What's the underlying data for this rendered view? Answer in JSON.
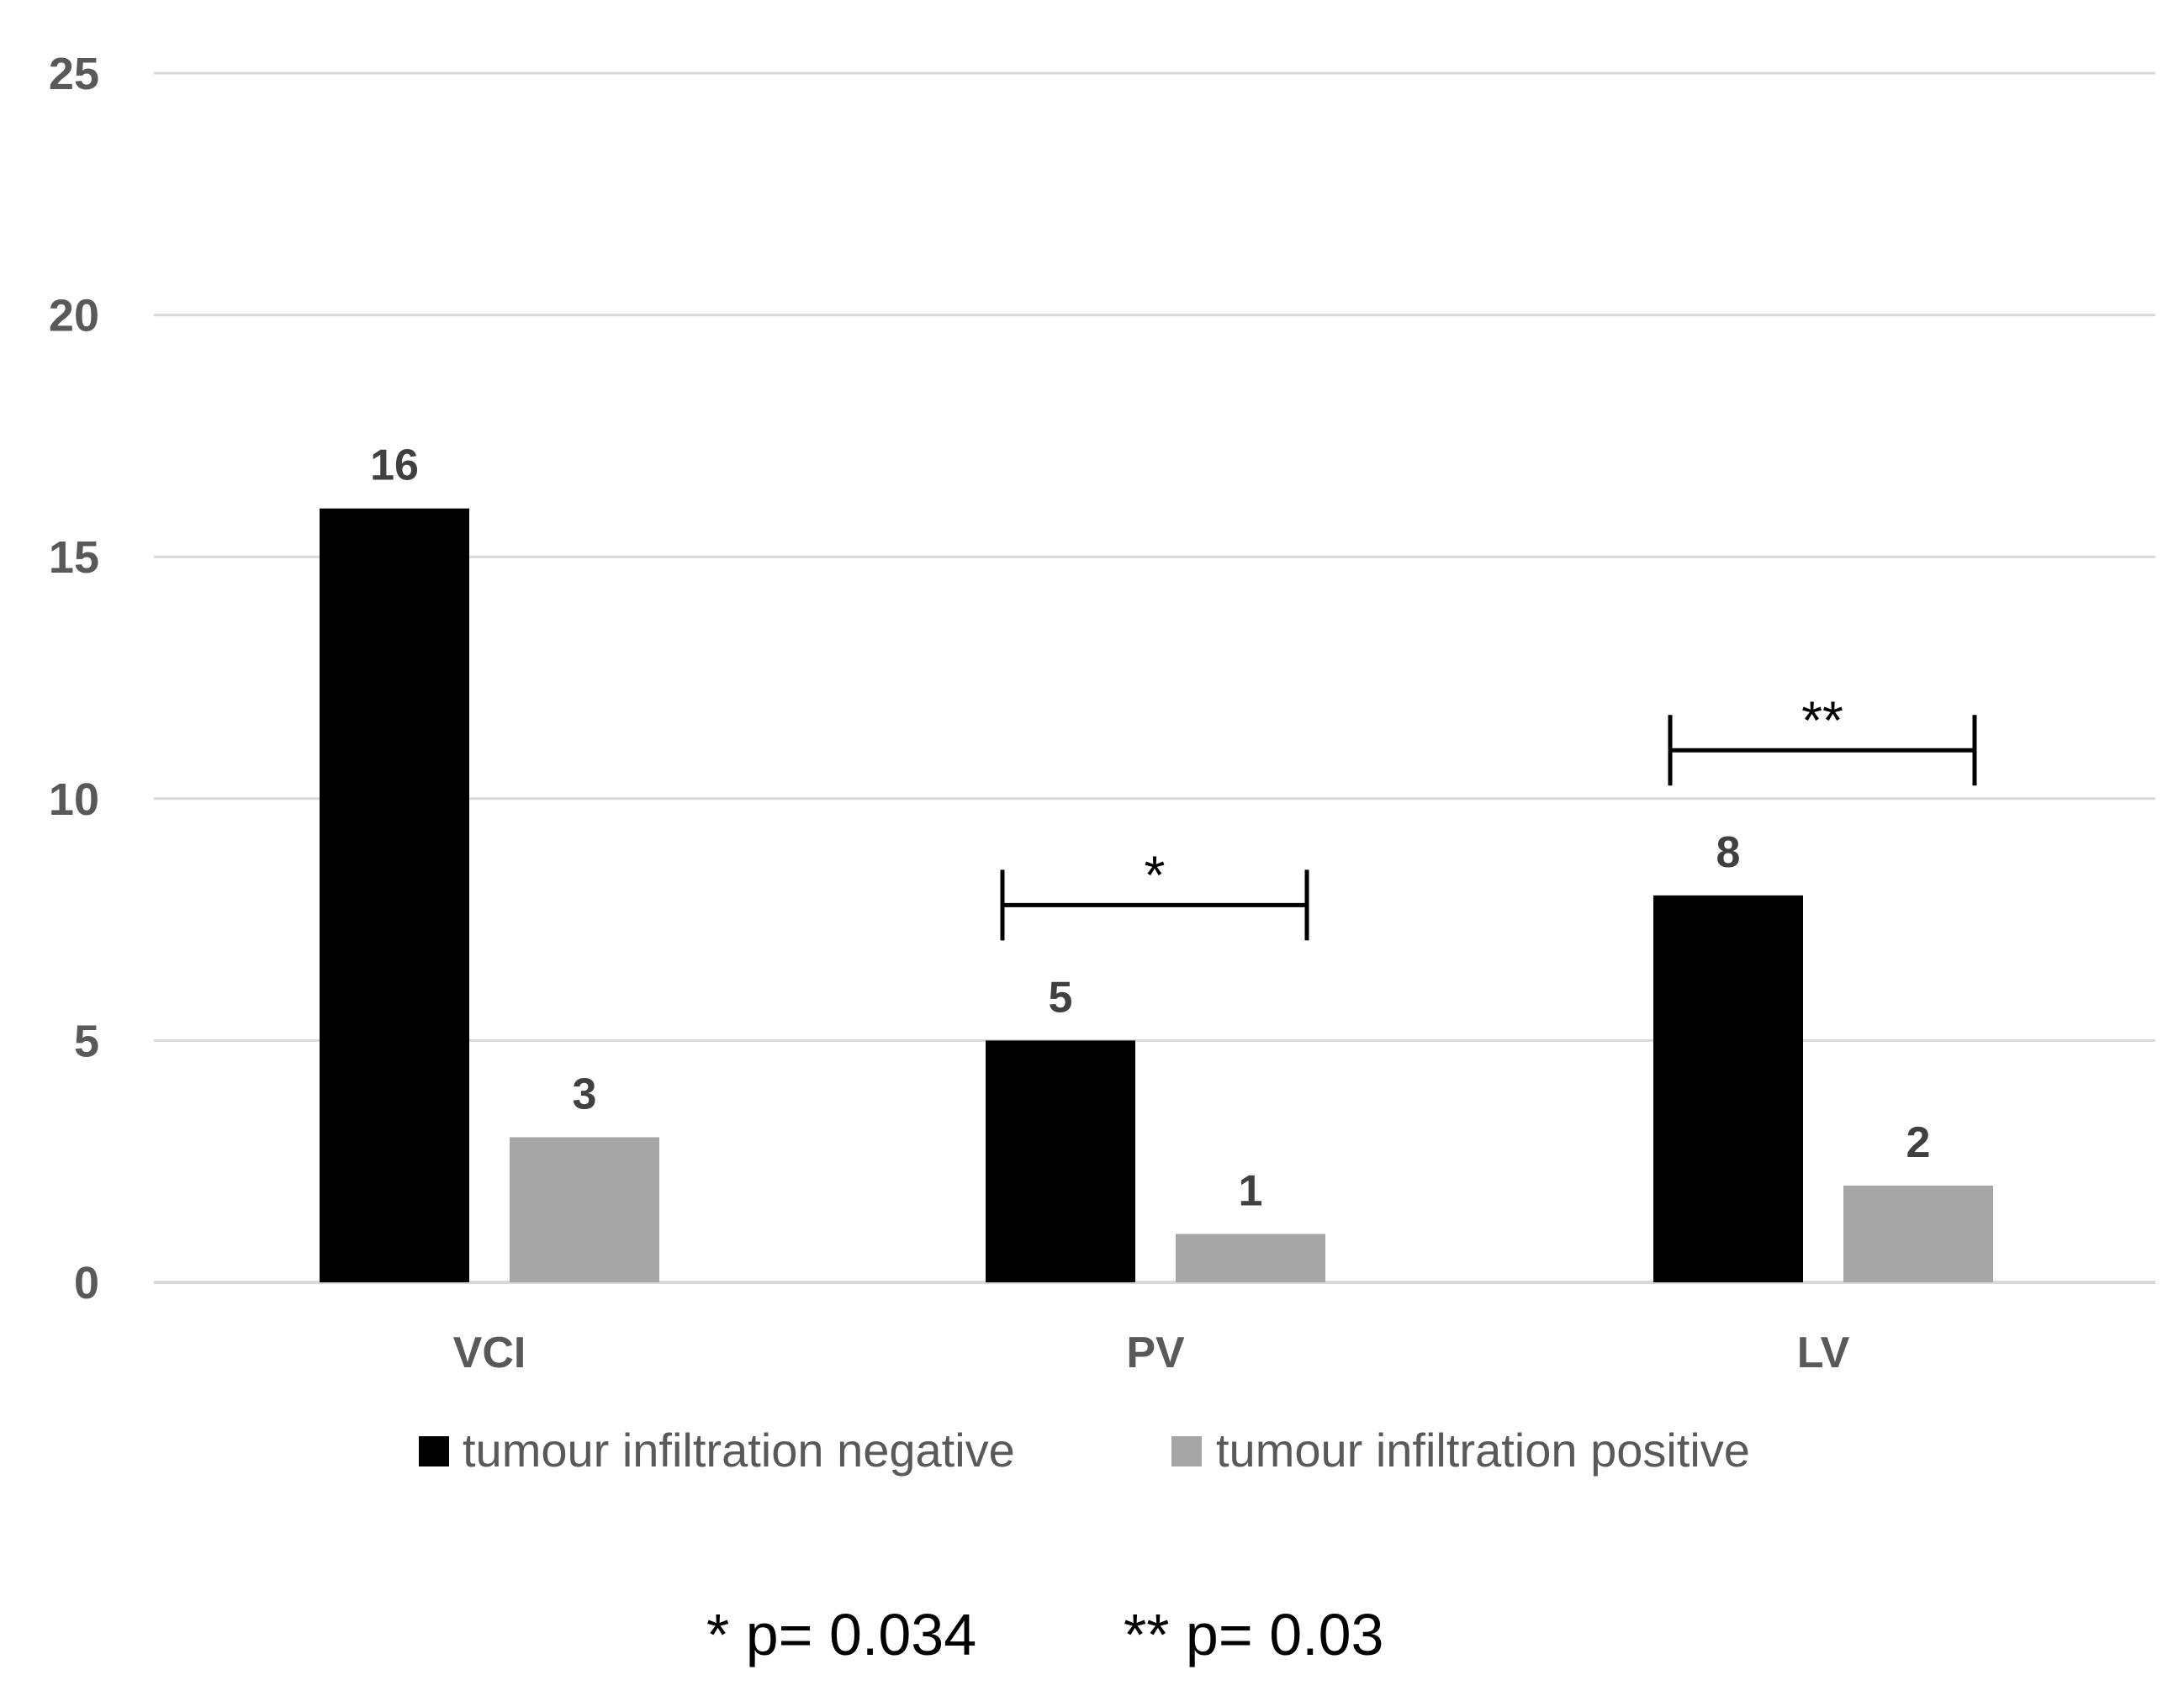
{
  "chart_data": {
    "type": "bar",
    "title": "",
    "xlabel": "",
    "ylabel": "",
    "categories": [
      "VCI",
      "PV",
      "LV"
    ],
    "series": [
      {
        "name": "tumour infiltration negative",
        "values": [
          16,
          5,
          8
        ],
        "color": "#000000"
      },
      {
        "name": "tumour infiltration positive",
        "values": [
          3,
          1,
          2
        ],
        "color": "#a6a6a6"
      }
    ],
    "ylim": [
      0,
      25
    ],
    "yticks": [
      0,
      5,
      10,
      15,
      20,
      25
    ],
    "grid": true,
    "legend_position": "bottom",
    "significance": [
      {
        "category": "PV",
        "mark": "*",
        "level": 7.8
      },
      {
        "category": "LV",
        "mark": "**",
        "level": 11
      }
    ],
    "footnote": {
      "single": "* p= 0.034",
      "double": "** p= 0.03"
    }
  }
}
